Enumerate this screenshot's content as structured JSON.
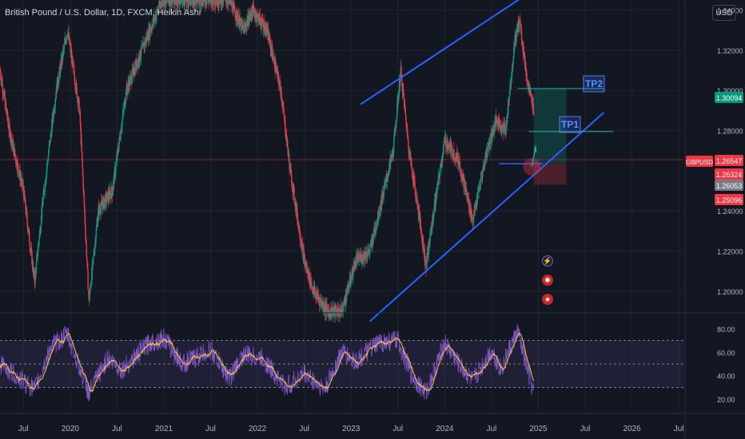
{
  "title": "British Pound / U.S. Dollar, 1D, FXCM, Heikin Ashi",
  "currency": "USD",
  "symbol": "GBPUSD",
  "price_labels": [
    {
      "text": "1.30094",
      "color": "#089981",
      "value": 1.30094
    },
    {
      "text": "1.26547",
      "color": "#f23645",
      "value": 1.26547
    },
    {
      "text": "1.26324",
      "color": "#f23645",
      "value": 1.26324
    },
    {
      "text": "1.26053",
      "color": "#787b86",
      "value": 1.26053
    },
    {
      "text": "1.25096",
      "color": "#f23645",
      "value": 1.25096
    }
  ],
  "annotations": {
    "tp1": "TP1",
    "tp2": "TP2"
  },
  "icons": [
    "lightning-icon",
    "event-flag-icon",
    "us-flag-icon"
  ],
  "colors": {
    "up": "#089981",
    "down": "#f23645",
    "trendline": "#2962ff",
    "rsi": "#7e57c2",
    "rsi_ma": "#f7c443"
  },
  "chart_data": [
    {
      "type": "candlestick",
      "title": "British Pound / U.S. Dollar, 1D, FXCM, Heikin Ashi",
      "y_ticks": [
        "1.34000",
        "1.32000",
        "1.30000",
        "1.28000",
        "1.24000",
        "1.22000",
        "1.20000"
      ],
      "ylim": [
        1.19,
        1.345
      ],
      "x_ticks": [
        "Jul",
        "2020",
        "Jul",
        "2021",
        "Jul",
        "2022",
        "Jul",
        "2023",
        "Jul",
        "2024",
        "Jul",
        "2025",
        "Jul",
        "2026",
        "Jul"
      ],
      "x_tick_dates": [
        2019.5,
        2020.0,
        2020.5,
        2021.0,
        2021.5,
        2022.0,
        2022.5,
        2023.0,
        2023.5,
        2024.0,
        2024.5,
        2025.0,
        2025.5,
        2026.0,
        2026.5
      ],
      "xlim": [
        2019.25,
        2026.55
      ],
      "swing_path": [
        {
          "x": 2019.25,
          "y": 1.31
        },
        {
          "x": 2019.35,
          "y": 1.28
        },
        {
          "x": 2019.5,
          "y": 1.25
        },
        {
          "x": 2019.62,
          "y": 1.205
        },
        {
          "x": 2019.72,
          "y": 1.25
        },
        {
          "x": 2019.85,
          "y": 1.3
        },
        {
          "x": 2019.97,
          "y": 1.33
        },
        {
          "x": 2020.1,
          "y": 1.29
        },
        {
          "x": 2020.2,
          "y": 1.195
        },
        {
          "x": 2020.3,
          "y": 1.24
        },
        {
          "x": 2020.45,
          "y": 1.25
        },
        {
          "x": 2020.6,
          "y": 1.3
        },
        {
          "x": 2020.85,
          "y": 1.33
        },
        {
          "x": 2020.98,
          "y": 1.345
        },
        {
          "x": 2021.2,
          "y": 1.345
        },
        {
          "x": 2021.5,
          "y": 1.345
        },
        {
          "x": 2021.7,
          "y": 1.345
        },
        {
          "x": 2021.85,
          "y": 1.33
        },
        {
          "x": 2021.95,
          "y": 1.34
        },
        {
          "x": 2022.1,
          "y": 1.33
        },
        {
          "x": 2022.25,
          "y": 1.3
        },
        {
          "x": 2022.35,
          "y": 1.26
        },
        {
          "x": 2022.5,
          "y": 1.215
        },
        {
          "x": 2022.6,
          "y": 1.2
        },
        {
          "x": 2022.75,
          "y": 1.19
        },
        {
          "x": 2022.9,
          "y": 1.19
        },
        {
          "x": 2023.05,
          "y": 1.215
        },
        {
          "x": 2023.2,
          "y": 1.22
        },
        {
          "x": 2023.35,
          "y": 1.25
        },
        {
          "x": 2023.45,
          "y": 1.27
        },
        {
          "x": 2023.53,
          "y": 1.31
        },
        {
          "x": 2023.62,
          "y": 1.27
        },
        {
          "x": 2023.72,
          "y": 1.24
        },
        {
          "x": 2023.8,
          "y": 1.213
        },
        {
          "x": 2023.9,
          "y": 1.245
        },
        {
          "x": 2024.0,
          "y": 1.275
        },
        {
          "x": 2024.15,
          "y": 1.265
        },
        {
          "x": 2024.3,
          "y": 1.235
        },
        {
          "x": 2024.45,
          "y": 1.27
        },
        {
          "x": 2024.55,
          "y": 1.285
        },
        {
          "x": 2024.65,
          "y": 1.28
        },
        {
          "x": 2024.75,
          "y": 1.325
        },
        {
          "x": 2024.8,
          "y": 1.335
        },
        {
          "x": 2024.88,
          "y": 1.305
        },
        {
          "x": 2024.95,
          "y": 1.29
        }
      ],
      "rsi_path": [
        {
          "x": 2019.25,
          "y": 50
        },
        {
          "x": 2019.5,
          "y": 35
        },
        {
          "x": 2019.62,
          "y": 28
        },
        {
          "x": 2019.8,
          "y": 65
        },
        {
          "x": 2019.97,
          "y": 75
        },
        {
          "x": 2020.2,
          "y": 25
        },
        {
          "x": 2020.4,
          "y": 55
        },
        {
          "x": 2020.55,
          "y": 45
        },
        {
          "x": 2020.85,
          "y": 68
        },
        {
          "x": 2021.0,
          "y": 72
        },
        {
          "x": 2021.2,
          "y": 50
        },
        {
          "x": 2021.5,
          "y": 62
        },
        {
          "x": 2021.7,
          "y": 38
        },
        {
          "x": 2021.85,
          "y": 58
        },
        {
          "x": 2022.05,
          "y": 55
        },
        {
          "x": 2022.3,
          "y": 30
        },
        {
          "x": 2022.5,
          "y": 42
        },
        {
          "x": 2022.72,
          "y": 28
        },
        {
          "x": 2022.9,
          "y": 60
        },
        {
          "x": 2023.05,
          "y": 52
        },
        {
          "x": 2023.3,
          "y": 68
        },
        {
          "x": 2023.5,
          "y": 70
        },
        {
          "x": 2023.65,
          "y": 40
        },
        {
          "x": 2023.8,
          "y": 25
        },
        {
          "x": 2024.0,
          "y": 68
        },
        {
          "x": 2024.15,
          "y": 50
        },
        {
          "x": 2024.3,
          "y": 35
        },
        {
          "x": 2024.5,
          "y": 62
        },
        {
          "x": 2024.6,
          "y": 45
        },
        {
          "x": 2024.78,
          "y": 78
        },
        {
          "x": 2024.85,
          "y": 55
        },
        {
          "x": 2024.95,
          "y": 25
        }
      ]
    },
    {
      "type": "line",
      "series": [
        {
          "name": "RSI"
        }
      ],
      "y_ticks": [
        "80.00",
        "60.00",
        "40.00",
        "20.00"
      ],
      "ylim": [
        12,
        88
      ],
      "bands": [
        70,
        50,
        30
      ]
    }
  ],
  "drawings": {
    "upper_trendline": [
      {
        "x": 2023.1,
        "y": 1.293
      },
      {
        "x": 2025.4,
        "y": 1.364
      }
    ],
    "lower_trendline": [
      {
        "x": 2023.2,
        "y": 1.185
      },
      {
        "x": 2025.7,
        "y": 1.289
      }
    ],
    "tp2_line": 1.3009,
    "tp1_line": 1.2795,
    "entry_line": 1.2635,
    "stop_zone": [
      1.2635,
      1.253
    ],
    "profit_zone": [
      1.3009,
      1.2635
    ],
    "zone_dates": [
      2024.95,
      2025.3
    ]
  }
}
